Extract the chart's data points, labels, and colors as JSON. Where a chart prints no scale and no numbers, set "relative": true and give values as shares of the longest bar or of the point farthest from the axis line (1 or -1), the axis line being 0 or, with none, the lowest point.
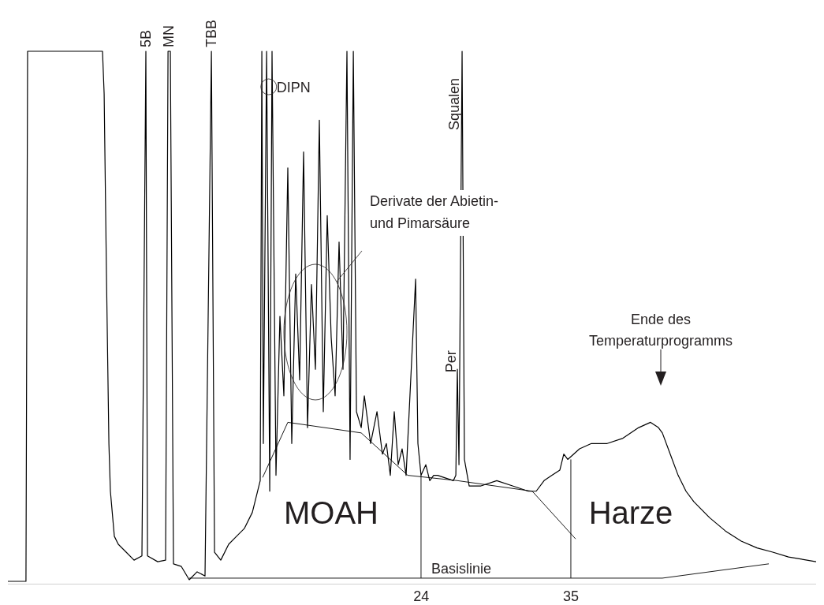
{
  "chart_data": {
    "type": "line",
    "relative": true,
    "xlim": [
      -6.41,
      53.04
    ],
    "xticks": [
      24,
      35
    ],
    "series": [
      {
        "color": "#000000",
        "x": [
          -6.41,
          -5.08,
          -4.96,
          0.55,
          0.67,
          0.84,
          1.02,
          1.13,
          1.42,
          1.71,
          2.29,
          2.87,
          3.45,
          3.74,
          3.86,
          4.61,
          5.19,
          5.37,
          5.54,
          5.77,
          6.35,
          6.93,
          7.51,
          8.09,
          8.56,
          8.79,
          9.25,
          9.83,
          10.41,
          10.99,
          11.57,
          12.15,
          12.27,
          12.38,
          12.62,
          12.85,
          13.02,
          13.31,
          13.6,
          13.89,
          14.18,
          14.47,
          14.76,
          15.05,
          15.34,
          15.63,
          15.92,
          16.21,
          16.5,
          16.79,
          17.08,
          17.37,
          17.66,
          17.95,
          18.24,
          18.53,
          18.76,
          19.0,
          19.23,
          19.58,
          19.81,
          20.27,
          20.74,
          21.14,
          21.43,
          21.72,
          22.01,
          22.3,
          22.59,
          22.88,
          23.58,
          23.75,
          23.98,
          24.33,
          24.62,
          24.91,
          25.2,
          26.36,
          26.54,
          26.65,
          26.77,
          27.0,
          27.17,
          27.52,
          28.39,
          29.55,
          30.71,
          31.87,
          32.45,
          33.03,
          33.61,
          34.19,
          34.48,
          34.77,
          35.64,
          36.51,
          37.67,
          38.83,
          39.99,
          40.86,
          41.44,
          41.73,
          42.31,
          42.89,
          43.47,
          44.05,
          45.21,
          46.37,
          47.53,
          48.69,
          49.85,
          51.01,
          53.04
        ],
        "values": [
          0,
          0,
          1,
          1,
          0.92,
          0.58,
          0.26,
          0.17,
          0.085,
          0.07,
          0.055,
          0.04,
          0.048,
          1,
          0.048,
          0.037,
          0.04,
          1,
          1,
          0.033,
          0.028,
          0.003,
          0.018,
          0.01,
          1,
          0.055,
          0.04,
          0.07,
          0.085,
          0.1,
          0.13,
          0.19,
          1,
          0.26,
          1,
          0.17,
          1,
          0.2,
          0.5,
          0.35,
          0.78,
          0.26,
          0.58,
          0.38,
          0.81,
          0.29,
          0.56,
          0.4,
          0.87,
          0.32,
          0.69,
          0.46,
          0.35,
          0.64,
          0.4,
          1,
          0.23,
          1,
          0.32,
          0.29,
          0.35,
          0.26,
          0.32,
          0.24,
          0.26,
          0.2,
          0.32,
          0.22,
          0.25,
          0.2,
          0.57,
          0.26,
          0.2,
          0.22,
          0.19,
          0.2,
          0.2,
          0.19,
          0.2,
          0.4,
          0.22,
          1,
          0.23,
          0.18,
          0.18,
          0.19,
          0.18,
          0.17,
          0.17,
          0.19,
          0.2,
          0.21,
          0.24,
          0.23,
          0.25,
          0.26,
          0.26,
          0.27,
          0.29,
          0.3,
          0.29,
          0.28,
          0.24,
          0.2,
          0.17,
          0.15,
          0.12,
          0.095,
          0.076,
          0.063,
          0.055,
          0.046,
          0.037
        ]
      },
      {
        "color": "#000000",
        "x": [
          12.33,
          14.18,
          19.58,
          23.0,
          26.65,
          32.16,
          35.35
        ],
        "values": [
          0.196,
          0.3,
          0.28,
          0.2,
          0.19,
          0.17,
          0.08
        ]
      },
      {
        "color": "#000000",
        "x": [
          6.93,
          41.73,
          49.56
        ],
        "values": [
          0.006,
          0.006,
          0.033
        ]
      },
      {
        "color": "#000000",
        "x": [
          23.98,
          23.98
        ],
        "values": [
          0.2,
          0.006
        ]
      },
      {
        "color": "#000000",
        "x": [
          35.0,
          35.0
        ],
        "values": [
          0.23,
          0.006
        ]
      }
    ],
    "annotations": [
      {
        "text": "5B",
        "x": 3.74,
        "y": 1
      },
      {
        "text": "MN",
        "x": 5.45,
        "y": 1
      },
      {
        "text": "TBB",
        "x": 8.56,
        "y": 1
      },
      {
        "text": "DIPN",
        "x": 12.6,
        "y": 0.93
      },
      "Derivate der Abietin-\nund Pimarsäure",
      {
        "text": "Per",
        "x": 26.65,
        "y": 0.4
      },
      {
        "text": "Squalen",
        "x": 27.0,
        "y": 1
      },
      "Ende des\nTemperaturprogramms",
      "MOAH",
      "Harze",
      "Basislinie"
    ]
  }
}
